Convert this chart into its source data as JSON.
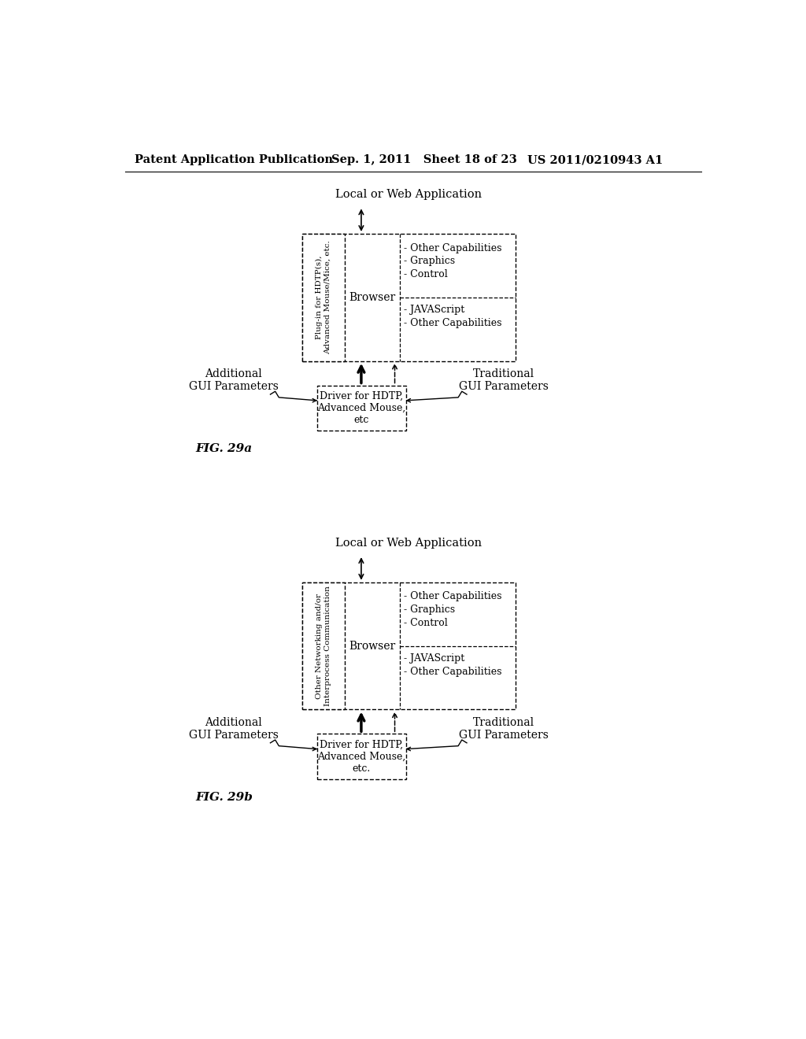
{
  "bg_color": "#ffffff",
  "header_left": "Patent Application Publication",
  "header_mid": "Sep. 1, 2011   Sheet 18 of 23",
  "header_right": "US 2011/0210943 A1",
  "fig_a": {
    "label": "FIG. 29a",
    "title": "Local or Web Application",
    "plugin_label_lines": [
      "Plug-in for HDTP(s),",
      "Advanced Mouse/Mice, etc."
    ],
    "browser_label": "Browser",
    "right_top_lines": [
      "- Other Capabilities",
      "- Graphics",
      "- Control"
    ],
    "right_bot_lines": [
      "- JAVAScript",
      "- Other Capabilities"
    ],
    "driver_box_label": "Driver for HDTP,\nAdvanced Mouse,\netc",
    "add_gui_label": "Additional\nGUI Parameters",
    "trad_gui_label": "Traditional\nGUI Parameters"
  },
  "fig_b": {
    "label": "FIG. 29b",
    "title": "Local or Web Application",
    "plugin_label_lines": [
      "Other Networking and/or",
      "Interprocess Communication"
    ],
    "browser_label": "Browser",
    "right_top_lines": [
      "- Other Capabilities",
      "- Graphics",
      "- Control"
    ],
    "right_bot_lines": [
      "- JAVAScript",
      "- Other Capabilities"
    ],
    "driver_box_label": "Driver for HDTP,\nAdvanced Mouse,\netc.",
    "add_gui_label": "Additional\nGUI Parameters",
    "trad_gui_label": "Traditional\nGUI Parameters"
  }
}
